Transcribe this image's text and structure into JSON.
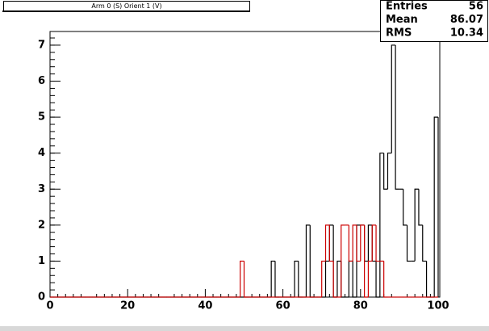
{
  "chart_data": {
    "type": "histogram",
    "title": "Arm 0 (S) Orient 1 (V)",
    "bins": [
      0,
      1,
      2,
      3,
      4,
      5,
      6,
      7,
      8,
      9,
      10,
      11,
      12,
      13,
      14,
      15,
      16,
      17,
      18,
      19,
      20,
      21,
      22,
      23,
      24,
      25,
      26,
      27,
      28,
      29,
      30,
      31,
      32,
      33,
      34,
      35,
      36,
      37,
      38,
      39,
      40,
      41,
      42,
      43,
      44,
      45,
      46,
      47,
      48,
      49,
      50,
      51,
      52,
      53,
      54,
      55,
      56,
      57,
      58,
      59,
      60,
      61,
      62,
      63,
      64,
      65,
      66,
      67,
      68,
      69,
      70,
      71,
      72,
      73,
      74,
      75,
      76,
      77,
      78,
      79,
      80,
      81,
      82,
      83,
      84,
      85,
      86,
      87,
      88,
      89,
      90,
      91,
      92,
      93,
      94,
      95,
      96,
      97,
      98,
      99,
      100
    ],
    "series": [
      {
        "color": "#000000",
        "values": [
          0,
          0,
          0,
          0,
          0,
          0,
          0,
          0,
          0,
          0,
          0,
          0,
          0,
          0,
          0,
          0,
          0,
          0,
          0,
          0,
          0,
          0,
          0,
          0,
          0,
          0,
          0,
          0,
          0,
          0,
          0,
          0,
          0,
          0,
          0,
          0,
          0,
          0,
          0,
          0,
          0,
          0,
          0,
          0,
          0,
          0,
          0,
          0,
          0,
          0,
          0,
          0,
          0,
          0,
          0,
          0,
          0,
          1,
          0,
          0,
          0,
          0,
          0,
          1,
          0,
          0,
          2,
          0,
          0,
          0,
          0,
          1,
          2,
          0,
          1,
          0,
          0,
          1,
          0,
          2,
          2,
          1,
          2,
          1,
          0,
          4,
          3,
          4,
          7,
          3,
          3,
          2,
          1,
          1,
          3,
          2,
          1,
          0,
          0,
          5
        ]
      },
      {
        "color": "#cc0000",
        "values": [
          0,
          0,
          0,
          0,
          0,
          0,
          0,
          0,
          0,
          0,
          0,
          0,
          0,
          0,
          0,
          0,
          0,
          0,
          0,
          0,
          0,
          0,
          0,
          0,
          0,
          0,
          0,
          0,
          0,
          0,
          0,
          0,
          0,
          0,
          0,
          0,
          0,
          0,
          0,
          0,
          0,
          0,
          0,
          0,
          0,
          0,
          0,
          0,
          0,
          1,
          0,
          0,
          0,
          0,
          0,
          0,
          0,
          0,
          0,
          0,
          0,
          0,
          0,
          0,
          0,
          0,
          0,
          0,
          0,
          0,
          1,
          2,
          1,
          0,
          0,
          2,
          2,
          1,
          2,
          1,
          2,
          0,
          1,
          2,
          1,
          1,
          0,
          0,
          0,
          0,
          0,
          0,
          0,
          0,
          0,
          0,
          0,
          0,
          0,
          0
        ]
      }
    ],
    "xlim": [
      0,
      100
    ],
    "xticks": [
      0,
      20,
      40,
      60,
      80,
      100
    ],
    "ylim": [
      0,
      7.38
    ],
    "yticks": [
      0,
      1,
      2,
      3,
      4,
      5,
      6,
      7
    ],
    "stats": [
      {
        "label": "Entries",
        "value": 56
      },
      {
        "label": "Mean",
        "value": 86.07
      },
      {
        "label": "RMS",
        "value": 10.34
      }
    ]
  }
}
